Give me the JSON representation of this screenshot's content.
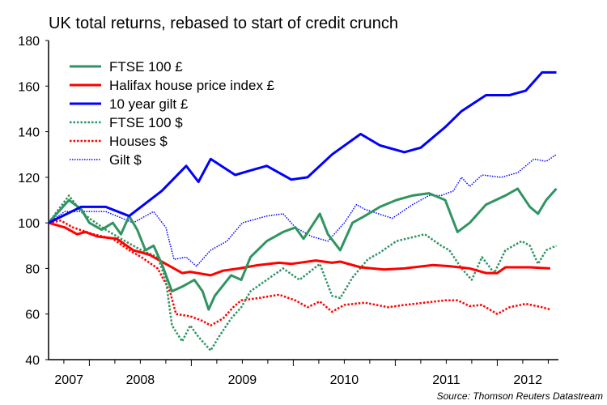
{
  "chart_data": {
    "type": "line",
    "title": "UK total returns, rebased to start of credit crunch",
    "source": "Source: Thomson Reuters Datastream",
    "xlabel": "",
    "ylabel": "",
    "xlim": [
      2007.6,
      2012.6
    ],
    "ylim": [
      40,
      180
    ],
    "yticks": [
      40,
      60,
      80,
      100,
      120,
      140,
      160,
      180
    ],
    "xtick_labels": [
      "2007",
      "2008",
      "2009",
      "2010",
      "2011",
      "2012"
    ],
    "grid": false,
    "legend_position": "top-left",
    "colors": {
      "green": "#2f9462",
      "red": "#ff0000",
      "blue": "#0000ff"
    },
    "series": [
      {
        "name": "FTSE 100 £",
        "color": "#2f9462",
        "style": "solid",
        "points": [
          [
            2007.6,
            100
          ],
          [
            2007.8,
            110
          ],
          [
            2007.92,
            106
          ],
          [
            2008.0,
            100
          ],
          [
            2008.12,
            97
          ],
          [
            2008.23,
            100
          ],
          [
            2008.31,
            95
          ],
          [
            2008.39,
            103
          ],
          [
            2008.47,
            97
          ],
          [
            2008.55,
            88
          ],
          [
            2008.63,
            90
          ],
          [
            2008.71,
            82
          ],
          [
            2008.81,
            70
          ],
          [
            2008.91,
            72
          ],
          [
            2009.03,
            75
          ],
          [
            2009.11,
            70
          ],
          [
            2009.17,
            62
          ],
          [
            2009.23,
            68
          ],
          [
            2009.39,
            77
          ],
          [
            2009.49,
            75
          ],
          [
            2009.58,
            85
          ],
          [
            2009.74,
            92
          ],
          [
            2009.9,
            96
          ],
          [
            2010.02,
            98
          ],
          [
            2010.1,
            93
          ],
          [
            2010.26,
            104
          ],
          [
            2010.34,
            95
          ],
          [
            2010.46,
            88
          ],
          [
            2010.58,
            100
          ],
          [
            2010.7,
            103
          ],
          [
            2010.85,
            107
          ],
          [
            2011.01,
            110
          ],
          [
            2011.17,
            112
          ],
          [
            2011.33,
            113
          ],
          [
            2011.49,
            110
          ],
          [
            2011.61,
            96
          ],
          [
            2011.73,
            100
          ],
          [
            2011.89,
            108
          ],
          [
            2012.08,
            112
          ],
          [
            2012.2,
            115
          ],
          [
            2012.32,
            107
          ],
          [
            2012.4,
            104
          ],
          [
            2012.48,
            110
          ],
          [
            2012.58,
            115
          ]
        ]
      },
      {
        "name": "Halifax house price index £",
        "color": "#ff0000",
        "style": "solid",
        "points": [
          [
            2007.6,
            100
          ],
          [
            2007.76,
            98
          ],
          [
            2007.88,
            95
          ],
          [
            2007.96,
            96
          ],
          [
            2008.08,
            94
          ],
          [
            2008.27,
            93
          ],
          [
            2008.43,
            88
          ],
          [
            2008.59,
            86
          ],
          [
            2008.75,
            82
          ],
          [
            2008.91,
            78
          ],
          [
            2008.99,
            78.5
          ],
          [
            2009.19,
            77
          ],
          [
            2009.31,
            79
          ],
          [
            2009.47,
            80
          ],
          [
            2009.66,
            81.5
          ],
          [
            2009.86,
            82.5
          ],
          [
            2009.98,
            82
          ],
          [
            2010.22,
            83.5
          ],
          [
            2010.38,
            82.5
          ],
          [
            2010.46,
            83
          ],
          [
            2010.66,
            80.5
          ],
          [
            2010.89,
            79.5
          ],
          [
            2011.09,
            80
          ],
          [
            2011.37,
            81.5
          ],
          [
            2011.53,
            81
          ],
          [
            2011.73,
            80
          ],
          [
            2011.89,
            78
          ],
          [
            2012.0,
            78
          ],
          [
            2012.08,
            80.5
          ],
          [
            2012.32,
            80.5
          ],
          [
            2012.52,
            80
          ]
        ]
      },
      {
        "name": "10 year gilt £",
        "color": "#0000ff",
        "style": "solid",
        "points": [
          [
            2007.6,
            100
          ],
          [
            2007.92,
            107
          ],
          [
            2008.16,
            107
          ],
          [
            2008.39,
            103
          ],
          [
            2008.71,
            114
          ],
          [
            2008.95,
            125
          ],
          [
            2009.07,
            118
          ],
          [
            2009.19,
            128
          ],
          [
            2009.43,
            121
          ],
          [
            2009.58,
            123
          ],
          [
            2009.74,
            125
          ],
          [
            2009.98,
            119
          ],
          [
            2010.14,
            120
          ],
          [
            2010.38,
            130
          ],
          [
            2010.66,
            139
          ],
          [
            2010.85,
            134
          ],
          [
            2011.09,
            131
          ],
          [
            2011.25,
            133
          ],
          [
            2011.49,
            142
          ],
          [
            2011.65,
            149
          ],
          [
            2011.89,
            156
          ],
          [
            2012.12,
            156
          ],
          [
            2012.28,
            158
          ],
          [
            2012.44,
            166
          ],
          [
            2012.58,
            166
          ]
        ]
      },
      {
        "name": "FTSE 100 $",
        "color": "#2f9462",
        "style": "dotted",
        "points": [
          [
            2007.6,
            100
          ],
          [
            2007.8,
            112
          ],
          [
            2007.92,
            105
          ],
          [
            2008.0,
            102
          ],
          [
            2008.16,
            97
          ],
          [
            2008.31,
            93
          ],
          [
            2008.51,
            88
          ],
          [
            2008.67,
            85
          ],
          [
            2008.75,
            75
          ],
          [
            2008.81,
            55
          ],
          [
            2008.91,
            48
          ],
          [
            2008.99,
            55
          ],
          [
            2009.07,
            50
          ],
          [
            2009.19,
            44
          ],
          [
            2009.27,
            50
          ],
          [
            2009.39,
            58
          ],
          [
            2009.49,
            63
          ],
          [
            2009.58,
            70
          ],
          [
            2009.74,
            75
          ],
          [
            2009.9,
            80
          ],
          [
            2010.06,
            75
          ],
          [
            2010.26,
            82
          ],
          [
            2010.38,
            68
          ],
          [
            2010.46,
            67
          ],
          [
            2010.58,
            76
          ],
          [
            2010.73,
            84
          ],
          [
            2010.85,
            87
          ],
          [
            2011.01,
            92
          ],
          [
            2011.29,
            95
          ],
          [
            2011.45,
            90
          ],
          [
            2011.53,
            88
          ],
          [
            2011.65,
            80
          ],
          [
            2011.75,
            75
          ],
          [
            2011.85,
            85
          ],
          [
            2011.97,
            78
          ],
          [
            2012.08,
            88
          ],
          [
            2012.24,
            92
          ],
          [
            2012.32,
            90
          ],
          [
            2012.4,
            82
          ],
          [
            2012.48,
            88
          ],
          [
            2012.58,
            90
          ]
        ]
      },
      {
        "name": "Houses $",
        "color": "#ff0000",
        "style": "dotted",
        "points": [
          [
            2007.6,
            100
          ],
          [
            2007.72,
            101
          ],
          [
            2007.84,
            98
          ],
          [
            2008.04,
            95
          ],
          [
            2008.23,
            93
          ],
          [
            2008.39,
            88
          ],
          [
            2008.51,
            85
          ],
          [
            2008.67,
            80
          ],
          [
            2008.79,
            70
          ],
          [
            2008.85,
            60
          ],
          [
            2008.99,
            59
          ],
          [
            2009.11,
            57
          ],
          [
            2009.19,
            55
          ],
          [
            2009.31,
            58
          ],
          [
            2009.41,
            63
          ],
          [
            2009.49,
            66
          ],
          [
            2009.66,
            67
          ],
          [
            2009.86,
            68.5
          ],
          [
            2010.02,
            66
          ],
          [
            2010.14,
            63
          ],
          [
            2010.26,
            65.5
          ],
          [
            2010.38,
            61
          ],
          [
            2010.5,
            64
          ],
          [
            2010.7,
            65
          ],
          [
            2010.93,
            63
          ],
          [
            2011.09,
            64
          ],
          [
            2011.29,
            65
          ],
          [
            2011.49,
            66
          ],
          [
            2011.61,
            66
          ],
          [
            2011.73,
            63.5
          ],
          [
            2011.85,
            64
          ],
          [
            2012.0,
            60
          ],
          [
            2012.12,
            63
          ],
          [
            2012.28,
            64.5
          ],
          [
            2012.44,
            63
          ],
          [
            2012.52,
            62
          ]
        ]
      },
      {
        "name": "Gilt $",
        "color": "#0000ff",
        "style": "thin-dotted",
        "points": [
          [
            2007.6,
            100
          ],
          [
            2007.76,
            105
          ],
          [
            2008.16,
            105
          ],
          [
            2008.43,
            100
          ],
          [
            2008.63,
            105
          ],
          [
            2008.75,
            98
          ],
          [
            2008.83,
            84
          ],
          [
            2008.95,
            85
          ],
          [
            2009.05,
            81
          ],
          [
            2009.19,
            88
          ],
          [
            2009.35,
            92
          ],
          [
            2009.5,
            100
          ],
          [
            2009.74,
            103
          ],
          [
            2009.9,
            104
          ],
          [
            2010.02,
            98
          ],
          [
            2010.18,
            94
          ],
          [
            2010.34,
            92
          ],
          [
            2010.5,
            100
          ],
          [
            2010.62,
            108
          ],
          [
            2010.7,
            106
          ],
          [
            2010.97,
            102
          ],
          [
            2011.17,
            108
          ],
          [
            2011.33,
            112
          ],
          [
            2011.45,
            112
          ],
          [
            2011.57,
            114
          ],
          [
            2011.65,
            120
          ],
          [
            2011.73,
            116
          ],
          [
            2011.85,
            121
          ],
          [
            2012.04,
            120
          ],
          [
            2012.2,
            122
          ],
          [
            2012.36,
            128
          ],
          [
            2012.48,
            127
          ],
          [
            2012.58,
            130
          ]
        ]
      }
    ]
  }
}
